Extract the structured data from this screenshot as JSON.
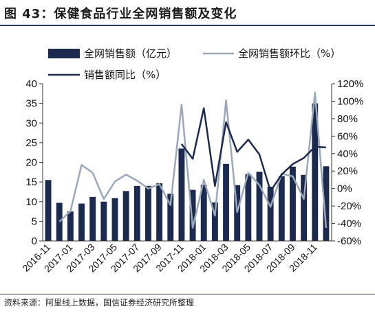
{
  "header": {
    "title": "图 43：保健食品行业全网销售额及变化"
  },
  "footer": {
    "source": "资料来源：阿里线上数据，国信证券经济研究所整理"
  },
  "chart_data": {
    "type": "bar",
    "title": "",
    "categories": [
      "2016-11",
      "2016-12",
      "2017-01",
      "2017-02",
      "2017-03",
      "2017-04",
      "2017-05",
      "2017-06",
      "2017-07",
      "2017-08",
      "2017-09",
      "2017-10",
      "2017-11",
      "2017-12",
      "2018-01",
      "2018-02",
      "2018-03",
      "2018-04",
      "2018-05",
      "2018-06",
      "2018-07",
      "2018-08",
      "2018-09",
      "2018-10",
      "2018-11",
      "2018-12"
    ],
    "x_tick_labels": [
      "2016-11",
      "2017-01",
      "2017-03",
      "2017-05",
      "2017-07",
      "2017-09",
      "2017-11",
      "2018-01",
      "2018-03",
      "2018-05",
      "2018-07",
      "2018-09",
      "2018-11"
    ],
    "series": [
      {
        "name": "全网销售额（亿元）",
        "type": "bar",
        "axis": "left",
        "color": "#1b2a4e",
        "values": [
          15.5,
          9.7,
          7.5,
          9.5,
          11.2,
          10.0,
          10.9,
          12.7,
          14.0,
          14.0,
          14.7,
          12.0,
          23.5,
          13.0,
          14.3,
          9.8,
          19.6,
          14.2,
          17.0,
          17.6,
          13.8,
          16.5,
          18.9,
          16.8,
          35.0,
          19.0
        ]
      },
      {
        "name": "全网销售额环比（%）",
        "type": "line",
        "axis": "right",
        "color": "#9aa8b9",
        "values": [
          null,
          -38,
          -26,
          27,
          18,
          -12,
          8,
          16,
          9,
          0,
          5,
          -19,
          96,
          -45,
          10,
          -31,
          101,
          -27,
          18,
          4,
          -21,
          17,
          14,
          -12,
          110,
          -45
        ]
      },
      {
        "name": "销售额同比（%）",
        "type": "line",
        "axis": "right",
        "color": "#1b2a4e",
        "values": [
          null,
          null,
          null,
          null,
          null,
          null,
          null,
          null,
          null,
          null,
          null,
          null,
          51,
          34,
          92,
          3,
          76,
          42,
          56,
          39,
          -3,
          16,
          28,
          35,
          48,
          47
        ]
      }
    ],
    "y_left": {
      "min": 0,
      "max": 40,
      "ticks": [
        0,
        5,
        10,
        15,
        20,
        25,
        30,
        35,
        40
      ]
    },
    "y_right": {
      "min": -60,
      "max": 120,
      "ticks": [
        -60,
        -40,
        -20,
        0,
        20,
        40,
        60,
        80,
        100,
        120
      ],
      "tick_labels": [
        "-60%",
        "-40%",
        "-20%",
        "0%",
        "20%",
        "40%",
        "60%",
        "80%",
        "100%",
        "120%"
      ]
    },
    "legend": {
      "placement": "top"
    },
    "grid": false
  }
}
